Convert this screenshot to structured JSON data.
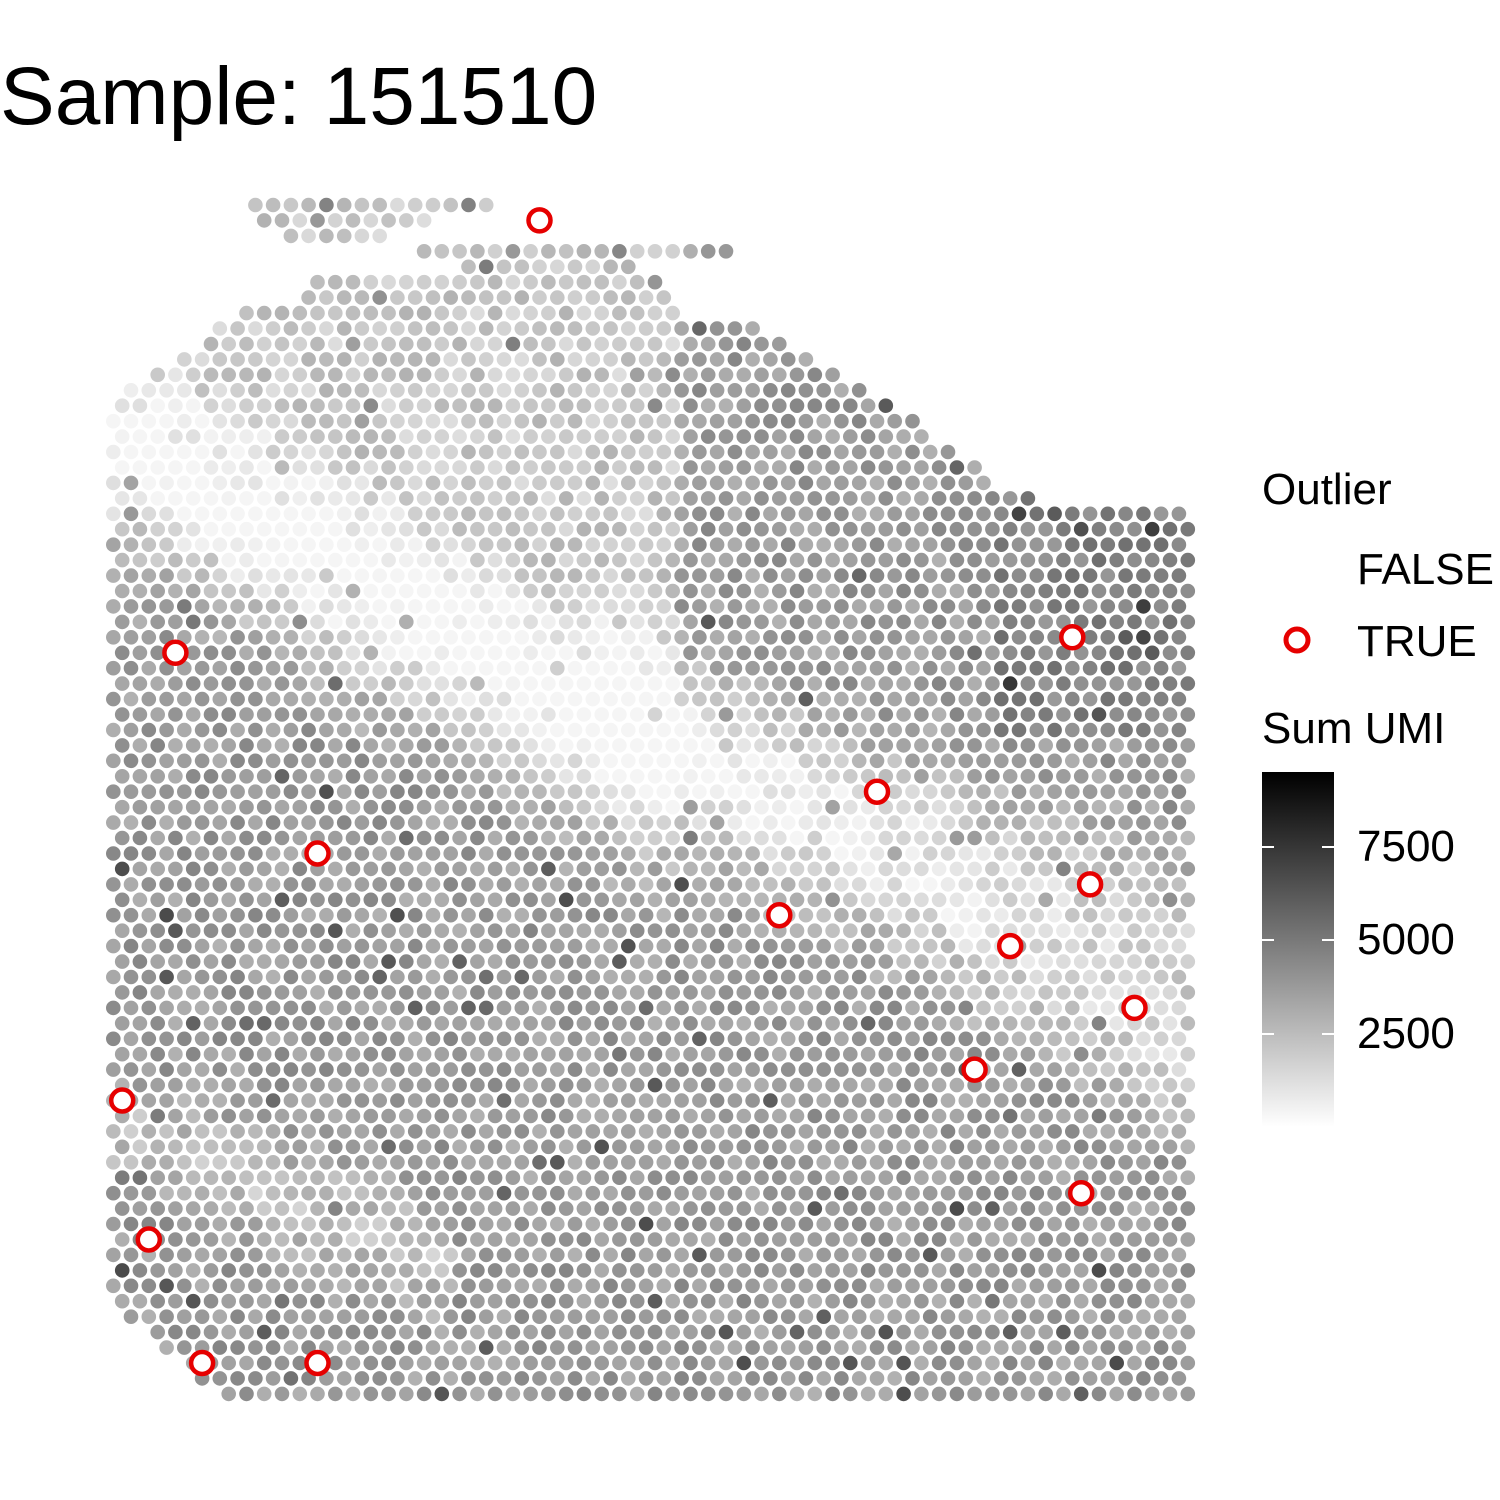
{
  "chart_data": {
    "type": "spatial-scatter",
    "title": "Sample: 151510",
    "xlabel": "",
    "ylabel": "",
    "grid": false,
    "legend_position": "right",
    "color_legend": {
      "title": "Sum UMI",
      "gradient_colors": [
        "#ffffff",
        "#000000"
      ],
      "range": [
        0,
        9500
      ],
      "ticks": [
        2500,
        5000,
        7500
      ],
      "tick_labels": [
        "2500",
        "5000",
        "7500"
      ]
    },
    "shape_legend": {
      "title": "Outlier",
      "entries": [
        {
          "label": "FALSE",
          "color": "none"
        },
        {
          "label": "TRUE",
          "color": "#e60000"
        }
      ]
    },
    "grid_spec": {
      "rows": 78,
      "row_range": [
        0,
        77
      ],
      "col_range": [
        0,
        127
      ],
      "row_bounds": [
        [
          22,
          48
        ],
        [
          22,
          42
        ],
        [
          26,
          36
        ],
        [
          40,
          76
        ],
        [
          46,
          64
        ],
        [
          29,
          68
        ],
        [
          28,
          68
        ],
        [
          20,
          70
        ],
        [
          18,
          78
        ],
        [
          16,
          81
        ],
        [
          14,
          84
        ],
        [
          10,
          87
        ],
        [
          7,
          91
        ],
        [
          7,
          93
        ],
        [
          6,
          96
        ],
        [
          6,
          98
        ],
        [
          6,
          100
        ],
        [
          6,
          104
        ],
        [
          6,
          104
        ],
        [
          6,
          110
        ],
        [
          6,
          127
        ],
        [
          6,
          127
        ],
        [
          6,
          127
        ],
        [
          6,
          127
        ],
        [
          6,
          127
        ],
        [
          6,
          127
        ],
        [
          6,
          127
        ],
        [
          6,
          127
        ],
        [
          6,
          127
        ],
        [
          6,
          127
        ],
        [
          6,
          127
        ],
        [
          6,
          127
        ],
        [
          6,
          127
        ],
        [
          6,
          127
        ],
        [
          6,
          127
        ],
        [
          6,
          127
        ],
        [
          6,
          127
        ],
        [
          6,
          127
        ],
        [
          6,
          127
        ],
        [
          6,
          127
        ],
        [
          6,
          127
        ],
        [
          6,
          127
        ],
        [
          6,
          127
        ],
        [
          6,
          127
        ],
        [
          6,
          127
        ],
        [
          6,
          127
        ],
        [
          6,
          127
        ],
        [
          6,
          127
        ],
        [
          6,
          127
        ],
        [
          6,
          127
        ],
        [
          6,
          127
        ],
        [
          6,
          127
        ],
        [
          6,
          127
        ],
        [
          6,
          127
        ],
        [
          6,
          127
        ],
        [
          6,
          127
        ],
        [
          6,
          127
        ],
        [
          6,
          127
        ],
        [
          6,
          127
        ],
        [
          6,
          127
        ],
        [
          6,
          127
        ],
        [
          6,
          127
        ],
        [
          6,
          127
        ],
        [
          6,
          127
        ],
        [
          6,
          127
        ],
        [
          6,
          127
        ],
        [
          6,
          127
        ],
        [
          6,
          127
        ],
        [
          6,
          127
        ],
        [
          6,
          127
        ],
        [
          6,
          127
        ],
        [
          7,
          127
        ],
        [
          8,
          127
        ],
        [
          10,
          127
        ],
        [
          12,
          127
        ],
        [
          14,
          127
        ],
        [
          16,
          127
        ],
        [
          18,
          127
        ]
      ]
    },
    "outliers": [
      {
        "row": 1,
        "col": 54
      },
      {
        "row": 28,
        "col": 114
      },
      {
        "row": 29,
        "col": 13
      },
      {
        "row": 38,
        "col": 92
      },
      {
        "row": 42,
        "col": 29
      },
      {
        "row": 44,
        "col": 116
      },
      {
        "row": 46,
        "col": 81
      },
      {
        "row": 48,
        "col": 107
      },
      {
        "row": 52,
        "col": 121
      },
      {
        "row": 56,
        "col": 103
      },
      {
        "row": 58,
        "col": 7
      },
      {
        "row": 64,
        "col": 115
      },
      {
        "row": 67,
        "col": 10
      },
      {
        "row": 75,
        "col": 16
      },
      {
        "row": 75,
        "col": 29
      }
    ]
  }
}
